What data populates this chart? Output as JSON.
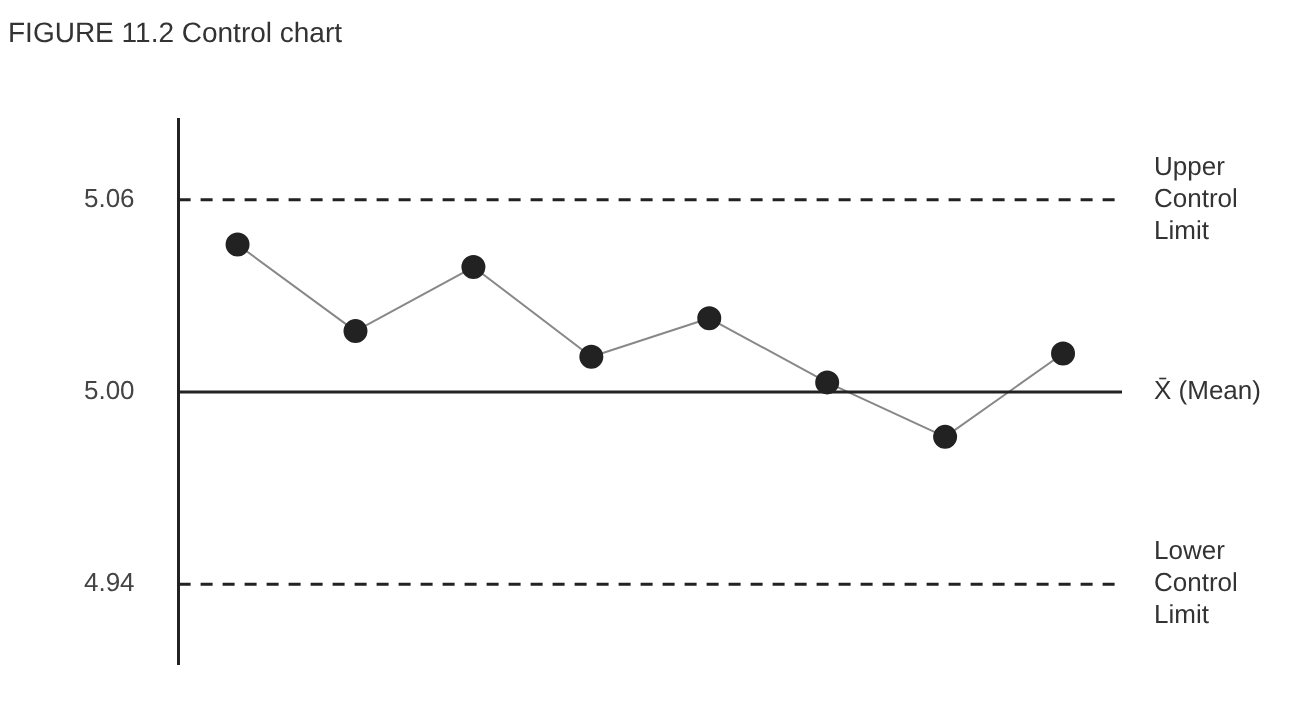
{
  "chart_data": {
    "type": "line",
    "title": "FIGURE 11.2  Control chart",
    "categories": [
      null,
      null,
      null,
      null,
      null,
      null,
      null,
      null
    ],
    "series": [
      {
        "color": "#222222",
        "values": [
          5.046,
          5.019,
          5.039,
          5.011,
          5.023,
          5.003,
          4.986,
          5.012
        ]
      }
    ],
    "ylim": [
      4.915,
      5.085
    ],
    "yticks": [
      4.94,
      {
        "value": 5.0,
        "label": "5.00"
      },
      5.06
    ],
    "ref_lines": [
      {
        "axis": "y",
        "value": 5.06,
        "label": "Upper Control Limit",
        "line_style": "dashed",
        "color": "#222222"
      },
      {
        "axis": "y",
        "value": 5.0,
        "label": "X̄ (Mean)",
        "line_style": "solid",
        "color": "#222222"
      },
      {
        "axis": "y",
        "value": 4.94,
        "label": "Lower Control Limit",
        "line_style": "dashed",
        "color": "#222222"
      }
    ],
    "marker": "circle",
    "line_style": "solid",
    "grid": false,
    "legend": false,
    "tick_labels": "y"
  }
}
